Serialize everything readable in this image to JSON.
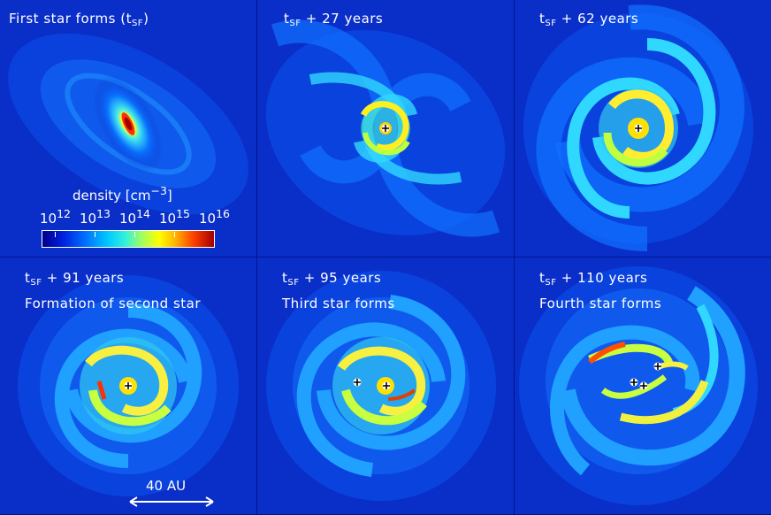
{
  "panels": [
    {
      "time_label": "First star forms (t",
      "time_sub": "SF",
      "time_suffix": ")",
      "event_label": ""
    },
    {
      "time_label": "t",
      "time_sub": "SF",
      "time_suffix": " + 27 years",
      "event_label": ""
    },
    {
      "time_label": "t",
      "time_sub": "SF",
      "time_suffix": " + 62 years",
      "event_label": ""
    },
    {
      "time_label": "t",
      "time_sub": "SF",
      "time_suffix": " + 91 years",
      "event_label": "Formation of second star"
    },
    {
      "time_label": "t",
      "time_sub": "SF",
      "time_suffix": " + 95 years",
      "event_label": "Third star forms"
    },
    {
      "time_label": "t",
      "time_sub": "SF",
      "time_suffix": " + 110 years",
      "event_label": "Fourth star forms"
    }
  ],
  "colorbar": {
    "title": "density [cm",
    "title_exp": "−3",
    "title_suffix": "]",
    "ticks": [
      {
        "base": "10",
        "exp": "12"
      },
      {
        "base": "10",
        "exp": "13"
      },
      {
        "base": "10",
        "exp": "14"
      },
      {
        "base": "10",
        "exp": "15"
      },
      {
        "base": "10",
        "exp": "16"
      }
    ]
  },
  "scalebar": {
    "label": "40 AU"
  },
  "colors": {
    "background": "#00148c",
    "low": "#0a2fc8",
    "mid": "#20c8ff",
    "high": "#ffff00",
    "peak": "#d00000"
  }
}
